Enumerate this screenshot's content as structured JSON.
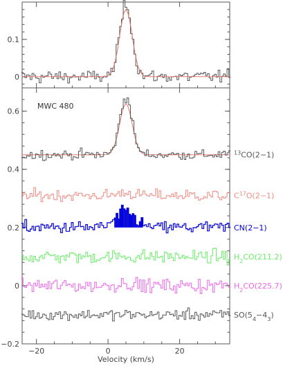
{
  "chart_data": [
    {
      "type": "line",
      "panel": "top",
      "xlim": [
        -24,
        34
      ],
      "ylim": [
        -0.03,
        0.2
      ],
      "y_ticks": [
        0,
        0.1
      ],
      "y_tick_labels": [
        "0",
        "0.1"
      ],
      "x_ticks": [
        -20,
        0,
        20
      ],
      "x_tick_labels": [
        "",
        "",
        ""
      ],
      "series": [
        {
          "role": "data-histogram",
          "color": "#555555",
          "profile": {
            "peak": 0.195,
            "center": 5.0,
            "sigma": 1.7,
            "noise": 0.012
          }
        },
        {
          "role": "fit",
          "color": "#e0766a",
          "profile": {
            "peak": 0.18,
            "center": 5.0,
            "sigma": 1.75,
            "noise": 0
          }
        }
      ]
    },
    {
      "type": "line",
      "panel": "bottom",
      "annotation": "MWC 480",
      "xlabel": "Velocity (km/s)",
      "xlim": [
        -24,
        34
      ],
      "ylim": [
        -0.2,
        0.68
      ],
      "y_ticks": [
        -0.2,
        0,
        0.2,
        0.4,
        0.6
      ],
      "y_tick_labels": [
        "−0.2",
        "0",
        "0.2",
        "0.4",
        "0.6"
      ],
      "x_ticks": [
        -20,
        0,
        20
      ],
      "x_tick_labels": [
        "−20",
        "0",
        "20"
      ],
      "series": [
        {
          "role": "stacked-fit",
          "color": "#e0766a",
          "offset": 0.45,
          "label": "",
          "profile": {
            "peak": 0.175,
            "center": 5.0,
            "sigma": 1.75,
            "noise": 0
          }
        },
        {
          "role": "stacked",
          "color": "#555555",
          "offset": 0.45,
          "label_parts": [
            {
              "t": "13",
              "s": "sup"
            },
            {
              "t": "CO(2−1)"
            }
          ],
          "profile": {
            "peak": 0.2,
            "center": 5.0,
            "sigma": 1.7,
            "noise": 0.012
          }
        },
        {
          "role": "stacked",
          "color": "#f08a80",
          "offset": 0.31,
          "label_parts": [
            {
              "t": "C"
            },
            {
              "t": "17",
              "s": "sup"
            },
            {
              "t": "O(2−1)"
            }
          ],
          "profile": {
            "peak": 0.01,
            "center": 5.0,
            "sigma": 2.0,
            "noise": 0.014
          }
        },
        {
          "role": "stacked",
          "color": "#0000dd",
          "offset": 0.2,
          "fill_band": [
            2,
            9.5
          ],
          "label_parts": [
            {
              "t": "CN(2−1)"
            }
          ],
          "profile": {
            "peak": 0.055,
            "center": 5.0,
            "sigma": 2.6,
            "noise": 0.015
          }
        },
        {
          "role": "stacked",
          "color": "#66ee66",
          "offset": 0.1,
          "label_parts": [
            {
              "t": "H"
            },
            {
              "t": "2",
              "s": "sub"
            },
            {
              "t": "CO(211.2)"
            }
          ],
          "profile": {
            "peak": 0.0,
            "center": 5.0,
            "sigma": 2.0,
            "noise": 0.016
          }
        },
        {
          "role": "stacked",
          "color": "#ee66ee",
          "offset": 0.0,
          "label_parts": [
            {
              "t": "H"
            },
            {
              "t": "2",
              "s": "sub"
            },
            {
              "t": "CO(225.7)"
            }
          ],
          "profile": {
            "peak": 0.01,
            "center": 5.0,
            "sigma": 2.0,
            "noise": 0.017
          }
        },
        {
          "role": "stacked",
          "color": "#555555",
          "offset": -0.1,
          "label_parts": [
            {
              "t": "SO(5"
            },
            {
              "t": "4",
              "s": "sub"
            },
            {
              "t": "−4"
            },
            {
              "t": "3",
              "s": "sub"
            },
            {
              "t": ")"
            }
          ],
          "profile": {
            "peak": 0.0,
            "center": 5.0,
            "sigma": 2.0,
            "noise": 0.013
          }
        }
      ]
    }
  ]
}
